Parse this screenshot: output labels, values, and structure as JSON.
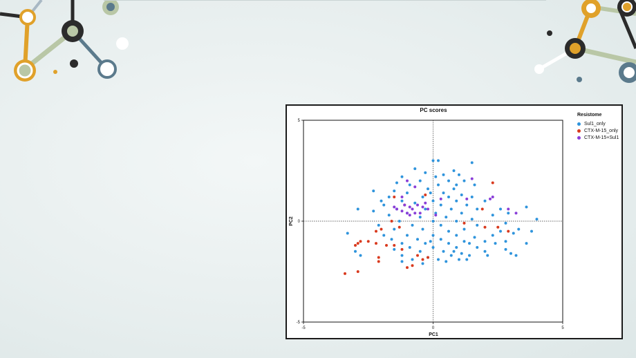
{
  "chart_data": {
    "type": "scatter",
    "title": "PC scores",
    "xlabel": "PC1",
    "ylabel": "PC2",
    "xlim": [
      -5,
      5
    ],
    "ylim": [
      -5,
      5
    ],
    "xticks": [
      "-5",
      "0",
      "5"
    ],
    "yticks": [
      "5",
      "0",
      "-5"
    ],
    "grid": false,
    "reference_lines": "dotted lines at x=0 and y=0",
    "legend": {
      "title": "Resistome",
      "placement": "top-right outside plot",
      "entries": [
        {
          "name": "Sul1_only",
          "color": "#2f94dc"
        },
        {
          "name": "CTX-M-15_only",
          "color": "#d93a1e"
        },
        {
          "name": "CTX-M-15+Sul1",
          "color": "#8a3fd8"
        }
      ]
    },
    "series": [
      {
        "name": "Sul1_only",
        "color": "#2f94dc",
        "points": [
          [
            0,
            3
          ],
          [
            0.2,
            3
          ],
          [
            -0.7,
            2.6
          ],
          [
            0.8,
            2.5
          ],
          [
            1.5,
            2.9
          ],
          [
            -0.3,
            2.4
          ],
          [
            0.4,
            2.3
          ],
          [
            1.0,
            2.3
          ],
          [
            -1.2,
            2.2
          ],
          [
            0.6,
            2.0
          ],
          [
            -0.5,
            2.0
          ],
          [
            1.2,
            2.0
          ],
          [
            -0.9,
            1.8
          ],
          [
            0.2,
            1.8
          ],
          [
            1.6,
            1.8
          ],
          [
            -1.5,
            1.5
          ],
          [
            -0.2,
            1.6
          ],
          [
            0.8,
            1.6
          ],
          [
            -2.3,
            1.5
          ],
          [
            -1.0,
            1.4
          ],
          [
            0.4,
            1.4
          ],
          [
            1.1,
            1.3
          ],
          [
            -1.7,
            1.2
          ],
          [
            -0.4,
            1.2
          ],
          [
            0.6,
            1.2
          ],
          [
            1.5,
            1.2
          ],
          [
            -2.0,
            1.0
          ],
          [
            -1.2,
            1.0
          ],
          [
            0.0,
            1.0
          ],
          [
            0.9,
            1.0
          ],
          [
            -0.7,
            0.9
          ],
          [
            0.3,
            0.8
          ],
          [
            1.3,
            0.8
          ],
          [
            2.0,
            1.0
          ],
          [
            -1.9,
            0.8
          ],
          [
            -2.9,
            0.6
          ],
          [
            -1.4,
            0.6
          ],
          [
            -0.3,
            0.6
          ],
          [
            0.7,
            0.6
          ],
          [
            1.7,
            0.6
          ],
          [
            2.6,
            0.6
          ],
          [
            3.6,
            0.7
          ],
          [
            -2.3,
            0.5
          ],
          [
            -1.0,
            0.4
          ],
          [
            0.1,
            0.4
          ],
          [
            1.1,
            0.4
          ],
          [
            2.9,
            0.4
          ],
          [
            -1.7,
            0.3
          ],
          [
            -0.5,
            0.2
          ],
          [
            0.5,
            0.2
          ],
          [
            1.5,
            0.1
          ],
          [
            2.3,
            0.3
          ],
          [
            4.0,
            0.1
          ],
          [
            -1.3,
            0.0
          ],
          [
            0.0,
            0.0
          ],
          [
            0.9,
            0.0
          ],
          [
            2.8,
            -0.1
          ],
          [
            -2.1,
            -0.2
          ],
          [
            -0.8,
            -0.2
          ],
          [
            0.3,
            -0.2
          ],
          [
            1.7,
            -0.2
          ],
          [
            3.3,
            -0.4
          ],
          [
            -3.3,
            -0.6
          ],
          [
            -1.5,
            -0.4
          ],
          [
            -0.4,
            -0.4
          ],
          [
            0.6,
            -0.5
          ],
          [
            1.2,
            -0.4
          ],
          [
            2.6,
            -0.5
          ],
          [
            3.8,
            -0.5
          ],
          [
            -1.9,
            -0.7
          ],
          [
            -1.0,
            -0.7
          ],
          [
            0.0,
            -0.7
          ],
          [
            0.9,
            -0.7
          ],
          [
            1.6,
            -0.8
          ],
          [
            2.3,
            -0.7
          ],
          [
            3.1,
            -0.6
          ],
          [
            -1.6,
            -0.9
          ],
          [
            -0.6,
            -0.9
          ],
          [
            0.3,
            -0.9
          ],
          [
            1.2,
            -1.0
          ],
          [
            2.0,
            -1.0
          ],
          [
            2.8,
            -1.0
          ],
          [
            -1.2,
            -1.1
          ],
          [
            -0.3,
            -1.1
          ],
          [
            0.6,
            -1.1
          ],
          [
            1.4,
            -1.1
          ],
          [
            2.4,
            -1.1
          ],
          [
            3.6,
            -1.1
          ],
          [
            -0.9,
            -1.3
          ],
          [
            0.0,
            -1.3
          ],
          [
            0.9,
            -1.3
          ],
          [
            1.7,
            -1.3
          ],
          [
            2.8,
            -1.4
          ],
          [
            -1.5,
            -1.4
          ],
          [
            -0.5,
            -1.5
          ],
          [
            0.4,
            -1.5
          ],
          [
            1.1,
            -1.6
          ],
          [
            2.0,
            -1.5
          ],
          [
            3.0,
            -1.6
          ],
          [
            -1.2,
            -1.7
          ],
          [
            -0.2,
            -1.8
          ],
          [
            0.7,
            -1.7
          ],
          [
            1.4,
            -1.7
          ],
          [
            2.1,
            -1.7
          ],
          [
            3.2,
            -1.7
          ],
          [
            -0.8,
            -1.9
          ],
          [
            0.2,
            -1.9
          ],
          [
            1.0,
            -1.9
          ],
          [
            -1.2,
            -2.0
          ],
          [
            -0.4,
            -2.1
          ],
          [
            0.5,
            -2.0
          ],
          [
            -2.8,
            -1.7
          ],
          [
            -3.0,
            -1.5
          ],
          [
            1.3,
            -1.9
          ],
          [
            0.8,
            -1.5
          ],
          [
            -0.1,
            -1.0
          ],
          [
            0.1,
            2.2
          ],
          [
            -0.1,
            1.4
          ],
          [
            0.9,
            1.8
          ],
          [
            -1.4,
            1.9
          ]
        ]
      },
      {
        "name": "CTX-M-15_only",
        "color": "#d93a1e",
        "points": [
          [
            -3.4,
            -2.6
          ],
          [
            -2.9,
            -2.5
          ],
          [
            -2.1,
            -2.0
          ],
          [
            -2.1,
            -1.8
          ],
          [
            -2.9,
            -1.1
          ],
          [
            -2.5,
            -1.0
          ],
          [
            -3.0,
            -1.2
          ],
          [
            -2.8,
            -1.0
          ],
          [
            -2.2,
            -1.1
          ],
          [
            -1.8,
            -1.2
          ],
          [
            -2.2,
            -0.5
          ],
          [
            -2.0,
            -0.4
          ],
          [
            -1.3,
            -0.3
          ],
          [
            -1.5,
            -1.2
          ],
          [
            -1.2,
            -1.4
          ],
          [
            -0.6,
            -1.7
          ],
          [
            -0.8,
            -2.2
          ],
          [
            -1.0,
            -2.3
          ],
          [
            -0.4,
            -1.9
          ],
          [
            -0.2,
            -1.8
          ],
          [
            -1.5,
            1.2
          ],
          [
            -1.1,
            0.8
          ],
          [
            -0.3,
            1.3
          ],
          [
            2.3,
            1.9
          ],
          [
            1.9,
            0.6
          ],
          [
            2.5,
            -0.3
          ],
          [
            2.0,
            -0.3
          ],
          [
            2.9,
            -0.5
          ],
          [
            1.2,
            -0.1
          ],
          [
            -1.6,
            0.0
          ]
        ]
      },
      {
        "name": "CTX-M-15+Sul1",
        "color": "#8a3fd8",
        "points": [
          [
            -1.0,
            2.0
          ],
          [
            -0.7,
            1.7
          ],
          [
            1.5,
            2.1
          ],
          [
            -1.2,
            1.2
          ],
          [
            -1.5,
            0.7
          ],
          [
            -1.4,
            0.6
          ],
          [
            -1.1,
            0.8
          ],
          [
            -0.9,
            0.7
          ],
          [
            -0.8,
            0.6
          ],
          [
            -0.6,
            0.8
          ],
          [
            -0.4,
            0.7
          ],
          [
            -0.7,
            0.4
          ],
          [
            -1.0,
            0.4
          ],
          [
            -0.5,
            0.4
          ],
          [
            -0.2,
            0.6
          ],
          [
            -1.2,
            0.5
          ],
          [
            -0.9,
            0.3
          ],
          [
            0.1,
            0.3
          ],
          [
            0.3,
            1.1
          ],
          [
            -0.3,
            0.9
          ],
          [
            1.3,
            1.1
          ],
          [
            2.3,
            1.2
          ],
          [
            2.2,
            1.1
          ],
          [
            2.9,
            0.6
          ],
          [
            3.2,
            0.4
          ]
        ]
      }
    ]
  }
}
